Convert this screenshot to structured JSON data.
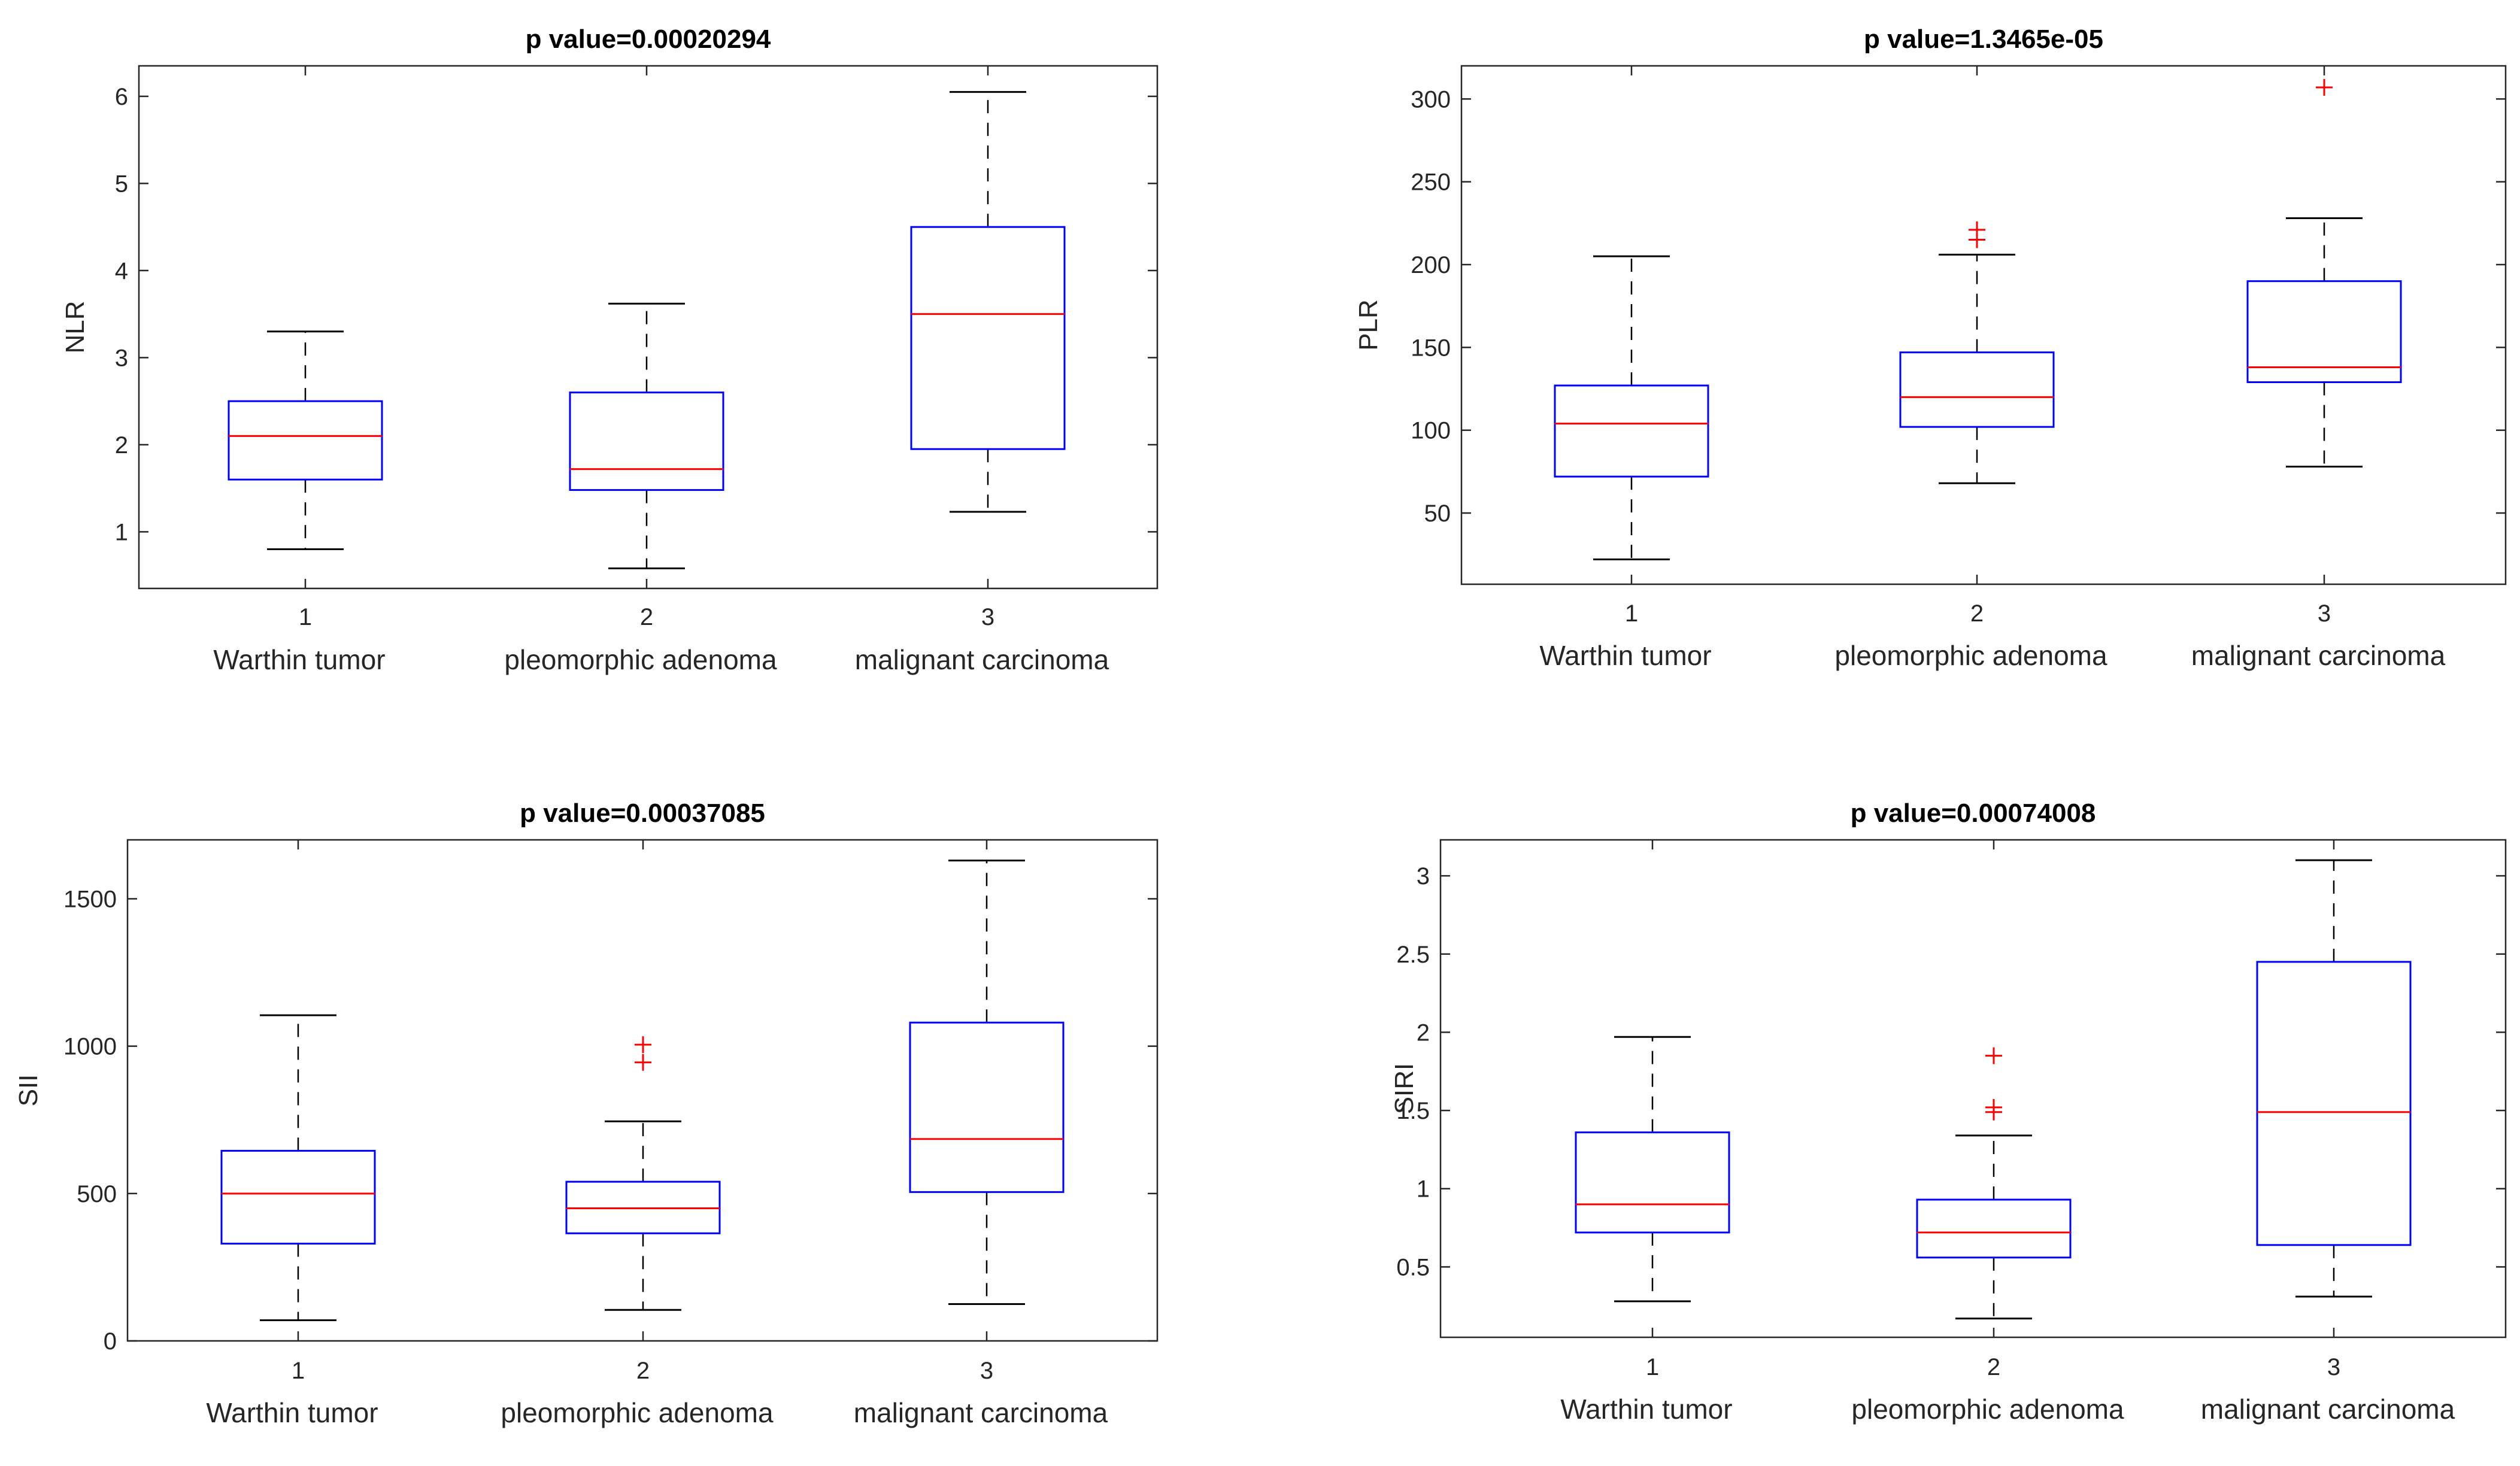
{
  "chart_data": [
    {
      "type": "box",
      "id": "nlr",
      "title": "p value=0.00020294",
      "ylabel": "NLR",
      "xlabel": "",
      "ylim": [
        0.35,
        6.35
      ],
      "yticks": [
        1,
        2,
        3,
        4,
        5,
        6
      ],
      "ytick_labels": [
        "1",
        "2",
        "3",
        "4",
        "5",
        "6"
      ],
      "categories": [
        "1",
        "2",
        "3"
      ],
      "group_labels": [
        "Warthin tumor",
        "pleomorphic adenoma",
        "malignant carcinoma"
      ],
      "boxes": [
        {
          "whisker_low": 0.8,
          "q1": 1.6,
          "median": 2.1,
          "q3": 2.5,
          "whisker_high": 3.3,
          "outliers": []
        },
        {
          "whisker_low": 0.58,
          "q1": 1.48,
          "median": 1.72,
          "q3": 2.6,
          "whisker_high": 3.62,
          "outliers": []
        },
        {
          "whisker_low": 1.23,
          "q1": 1.95,
          "median": 3.5,
          "q3": 4.5,
          "whisker_high": 6.05,
          "outliers": []
        }
      ]
    },
    {
      "type": "box",
      "id": "plr",
      "title": "p value=1.3465e-05",
      "ylabel": "PLR",
      "xlabel": "",
      "ylim": [
        7,
        320
      ],
      "yticks": [
        50,
        100,
        150,
        200,
        250,
        300
      ],
      "ytick_labels": [
        "50",
        "100",
        "150",
        "200",
        "250",
        "300"
      ],
      "categories": [
        "1",
        "2",
        "3"
      ],
      "group_labels": [
        "Warthin tumor",
        "pleomorphic adenoma",
        "malignant carcinoma"
      ],
      "boxes": [
        {
          "whisker_low": 22,
          "q1": 72,
          "median": 104,
          "q3": 127,
          "whisker_high": 205,
          "outliers": []
        },
        {
          "whisker_low": 68,
          "q1": 102,
          "median": 120,
          "q3": 147,
          "whisker_high": 206,
          "outliers": [
            215,
            221
          ]
        },
        {
          "whisker_low": 78,
          "q1": 129,
          "median": 138,
          "q3": 190,
          "whisker_high": 228,
          "outliers": [
            307
          ]
        }
      ]
    },
    {
      "type": "box",
      "id": "sii",
      "title": "p value=0.00037085",
      "ylabel": "SII",
      "xlabel": "",
      "ylim": [
        0,
        1700
      ],
      "yticks": [
        0,
        500,
        1000,
        1500
      ],
      "ytick_labels": [
        "0",
        "500",
        "1000",
        "1500"
      ],
      "categories": [
        "1",
        "2",
        "3"
      ],
      "group_labels": [
        "Warthin tumor",
        "pleomorphic adenoma",
        "malignant carcinoma"
      ],
      "boxes": [
        {
          "whisker_low": 70,
          "q1": 330,
          "median": 500,
          "q3": 645,
          "whisker_high": 1105,
          "outliers": []
        },
        {
          "whisker_low": 105,
          "q1": 365,
          "median": 450,
          "q3": 540,
          "whisker_high": 745,
          "outliers": [
            945,
            1005
          ]
        },
        {
          "whisker_low": 125,
          "q1": 505,
          "median": 685,
          "q3": 1080,
          "whisker_high": 1630,
          "outliers": []
        }
      ]
    },
    {
      "type": "box",
      "id": "siri",
      "title": "p value=0.00074008",
      "ylabel": "SIRI",
      "xlabel": "",
      "ylim": [
        0.05,
        3.23
      ],
      "yticks": [
        0.5,
        1,
        1.5,
        2,
        2.5,
        3
      ],
      "ytick_labels": [
        "0.5",
        "1",
        "1.5",
        "2",
        "2.5",
        "3"
      ],
      "categories": [
        "1",
        "2",
        "3"
      ],
      "group_labels": [
        "Warthin tumor",
        "pleomorphic adenoma",
        "malignant carcinoma"
      ],
      "boxes": [
        {
          "whisker_low": 0.28,
          "q1": 0.72,
          "median": 0.9,
          "q3": 1.36,
          "whisker_high": 1.97,
          "outliers": []
        },
        {
          "whisker_low": 0.17,
          "q1": 0.56,
          "median": 0.72,
          "q3": 0.93,
          "whisker_high": 1.34,
          "outliers": [
            1.49,
            1.52,
            1.85
          ]
        },
        {
          "whisker_low": 0.31,
          "q1": 0.64,
          "median": 1.49,
          "q3": 2.45,
          "whisker_high": 3.1,
          "outliers": []
        }
      ]
    }
  ],
  "colors": {
    "box": "#0000ff",
    "median": "#ff0000",
    "whisker": "#000000",
    "outlier": "#ff0000",
    "axis": "#262626"
  }
}
